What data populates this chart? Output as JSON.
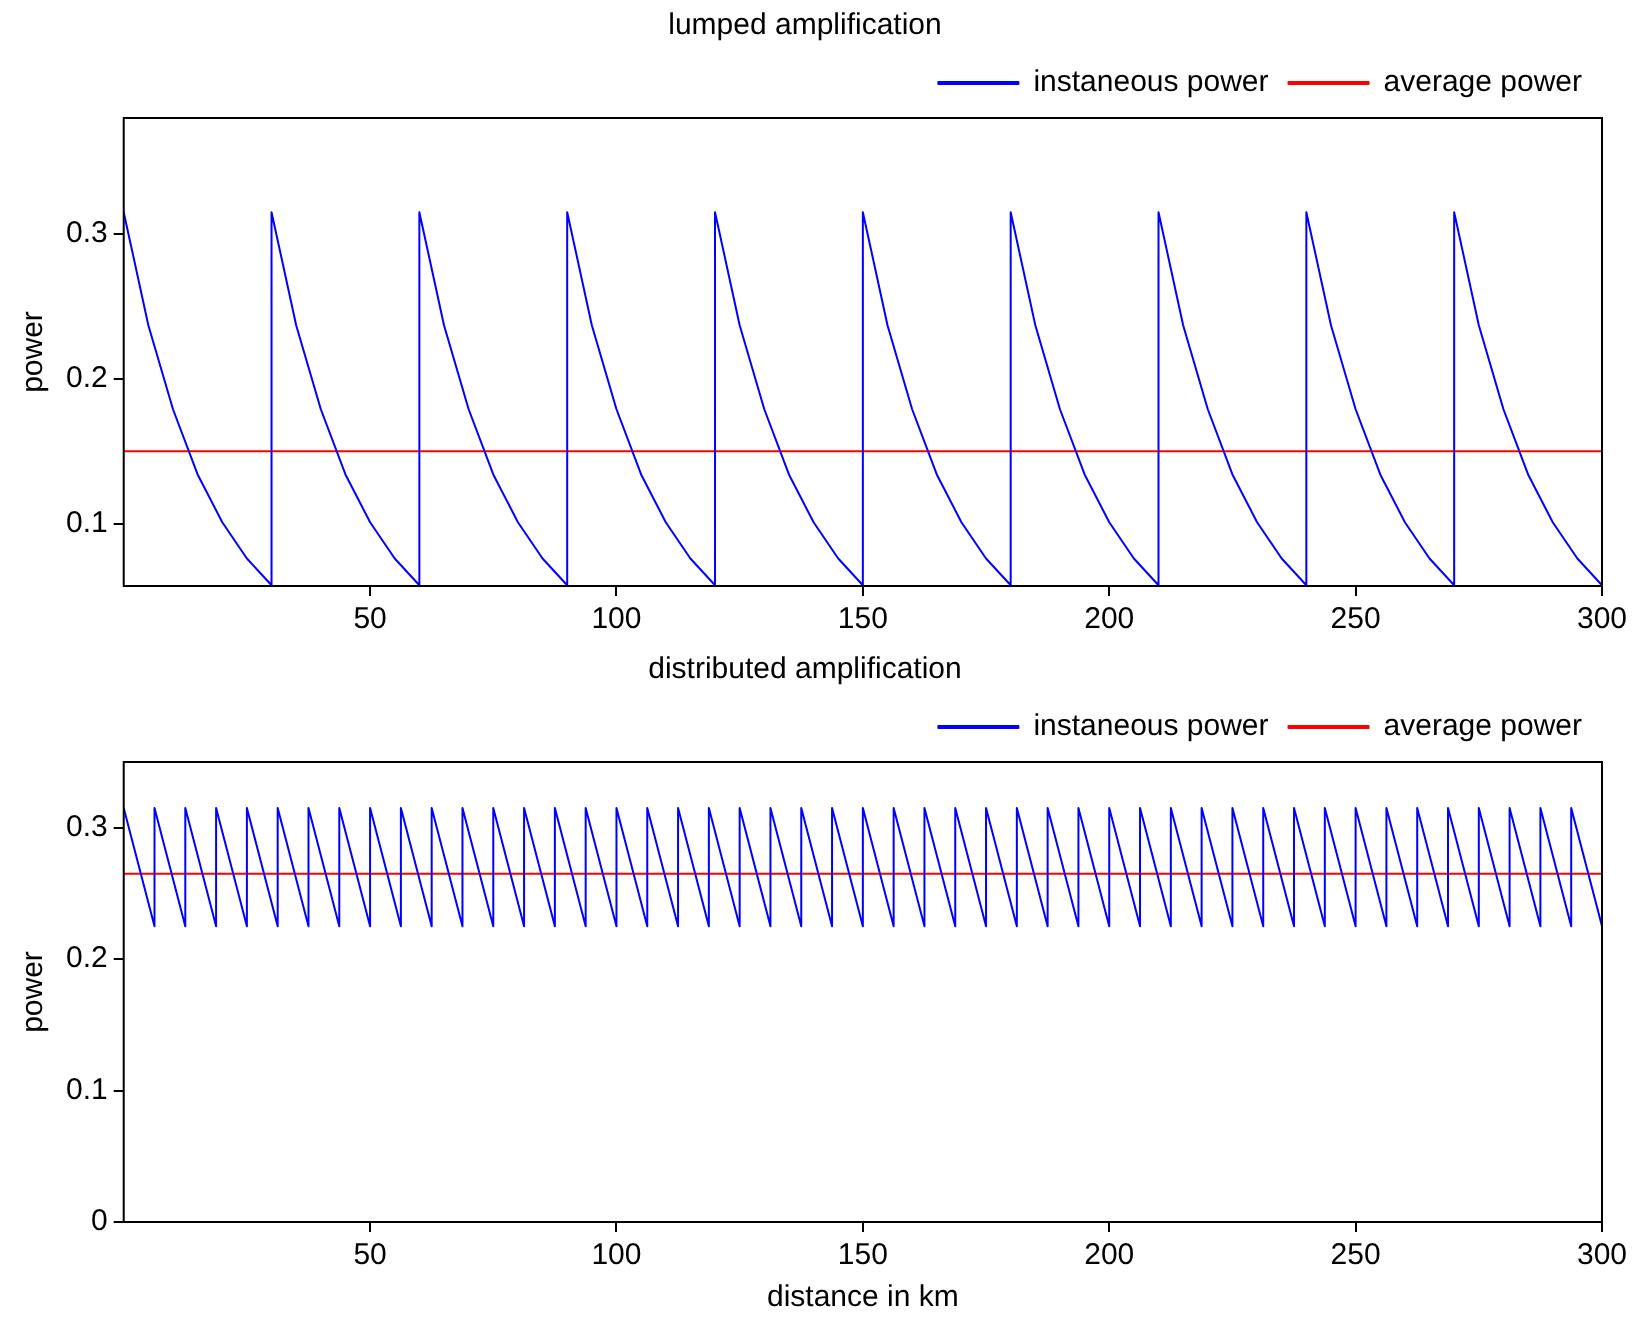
{
  "chart_data": [
    {
      "type": "line",
      "title": "lumped amplification",
      "ylabel": "power",
      "xlim": [
        0,
        300
      ],
      "xticks": [
        50,
        100,
        150,
        200,
        250,
        300
      ],
      "ylim": [
        0.057,
        0.38
      ],
      "yticks": [
        0.1,
        0.2,
        0.3
      ],
      "grid": false,
      "legend": "top right",
      "series": [
        {
          "name": "instaneous power",
          "color": "#0000ff",
          "x": [
            0,
            5,
            10,
            15,
            20,
            25,
            30,
            30,
            35,
            40,
            45,
            50,
            55,
            60,
            60,
            65,
            70,
            75,
            80,
            85,
            90,
            90,
            95,
            100,
            105,
            110,
            115,
            120,
            120,
            125,
            130,
            135,
            140,
            145,
            150,
            150,
            155,
            160,
            165,
            170,
            175,
            180,
            180,
            185,
            190,
            195,
            200,
            205,
            210,
            210,
            215,
            220,
            225,
            230,
            235,
            240,
            240,
            245,
            250,
            255,
            260,
            265,
            270,
            270,
            275,
            280,
            285,
            290,
            295,
            300
          ],
          "values": [
            0.315,
            0.237,
            0.179,
            0.134,
            0.101,
            0.076,
            0.0575,
            0.315,
            0.237,
            0.179,
            0.134,
            0.101,
            0.076,
            0.0575,
            0.315,
            0.237,
            0.179,
            0.134,
            0.101,
            0.076,
            0.0575,
            0.315,
            0.237,
            0.179,
            0.134,
            0.101,
            0.076,
            0.0575,
            0.315,
            0.237,
            0.179,
            0.134,
            0.101,
            0.076,
            0.0575,
            0.315,
            0.237,
            0.179,
            0.134,
            0.101,
            0.076,
            0.0575,
            0.315,
            0.237,
            0.179,
            0.134,
            0.101,
            0.076,
            0.0575,
            0.315,
            0.237,
            0.179,
            0.134,
            0.101,
            0.076,
            0.0575,
            0.315,
            0.237,
            0.179,
            0.134,
            0.101,
            0.076,
            0.0575,
            0.315,
            0.237,
            0.179,
            0.134,
            0.101,
            0.076,
            0.0575
          ]
        },
        {
          "name": "average power",
          "color": "#ff0000",
          "x": [
            0,
            300
          ],
          "values": [
            0.15,
            0.15
          ]
        }
      ]
    },
    {
      "type": "line",
      "title": "distributed amplification",
      "xlabel": "distance in km",
      "ylabel": "power",
      "xlim": [
        0,
        300
      ],
      "xticks": [
        50,
        100,
        150,
        200,
        250,
        300
      ],
      "ylim": [
        0,
        0.35
      ],
      "yticks": [
        0,
        0.1,
        0.2,
        0.3
      ],
      "grid": false,
      "legend": "top right",
      "series": [
        {
          "name": "instaneous power",
          "color": "#0000ff",
          "x": [
            0,
            6.25,
            6.25,
            12.5,
            12.5,
            18.75,
            18.75,
            25,
            25,
            31.25,
            31.25,
            37.5,
            37.5,
            43.75,
            43.75,
            50,
            50,
            56.25,
            56.25,
            62.5,
            62.5,
            68.75,
            68.75,
            75,
            75,
            81.25,
            81.25,
            87.5,
            87.5,
            93.75,
            93.75,
            100,
            100,
            106.25,
            106.25,
            112.5,
            112.5,
            118.75,
            118.75,
            125,
            125,
            131.25,
            131.25,
            137.5,
            137.5,
            143.75,
            143.75,
            150,
            150,
            156.25,
            156.25,
            162.5,
            162.5,
            168.75,
            168.75,
            175,
            175,
            181.25,
            181.25,
            187.5,
            187.5,
            193.75,
            193.75,
            200,
            200,
            206.25,
            206.25,
            212.5,
            212.5,
            218.75,
            218.75,
            225,
            225,
            231.25,
            231.25,
            237.5,
            237.5,
            243.75,
            243.75,
            250,
            250,
            256.25,
            256.25,
            262.5,
            262.5,
            268.75,
            268.75,
            275,
            275,
            281.25,
            281.25,
            287.5,
            287.5,
            293.75,
            293.75,
            300
          ],
          "values": [
            0.315,
            0.225,
            0.315,
            0.225,
            0.315,
            0.225,
            0.315,
            0.225,
            0.315,
            0.225,
            0.315,
            0.225,
            0.315,
            0.225,
            0.315,
            0.225,
            0.315,
            0.225,
            0.315,
            0.225,
            0.315,
            0.225,
            0.315,
            0.225,
            0.315,
            0.225,
            0.315,
            0.225,
            0.315,
            0.225,
            0.315,
            0.225,
            0.315,
            0.225,
            0.315,
            0.225,
            0.315,
            0.225,
            0.315,
            0.225,
            0.315,
            0.225,
            0.315,
            0.225,
            0.315,
            0.225,
            0.315,
            0.225,
            0.315,
            0.225,
            0.315,
            0.225,
            0.315,
            0.225,
            0.315,
            0.225,
            0.315,
            0.225,
            0.315,
            0.225,
            0.315,
            0.225,
            0.315,
            0.225,
            0.315,
            0.225,
            0.315,
            0.225,
            0.315,
            0.225,
            0.315,
            0.225,
            0.315,
            0.225,
            0.315,
            0.225,
            0.315,
            0.225,
            0.315,
            0.225,
            0.315,
            0.225,
            0.315,
            0.225,
            0.315,
            0.225,
            0.315,
            0.225,
            0.315,
            0.225,
            0.315,
            0.225,
            0.315,
            0.225,
            0.315,
            0.225
          ]
        },
        {
          "name": "average power",
          "color": "#ff0000",
          "x": [
            0,
            300
          ],
          "values": [
            0.265,
            0.265
          ]
        }
      ]
    }
  ]
}
